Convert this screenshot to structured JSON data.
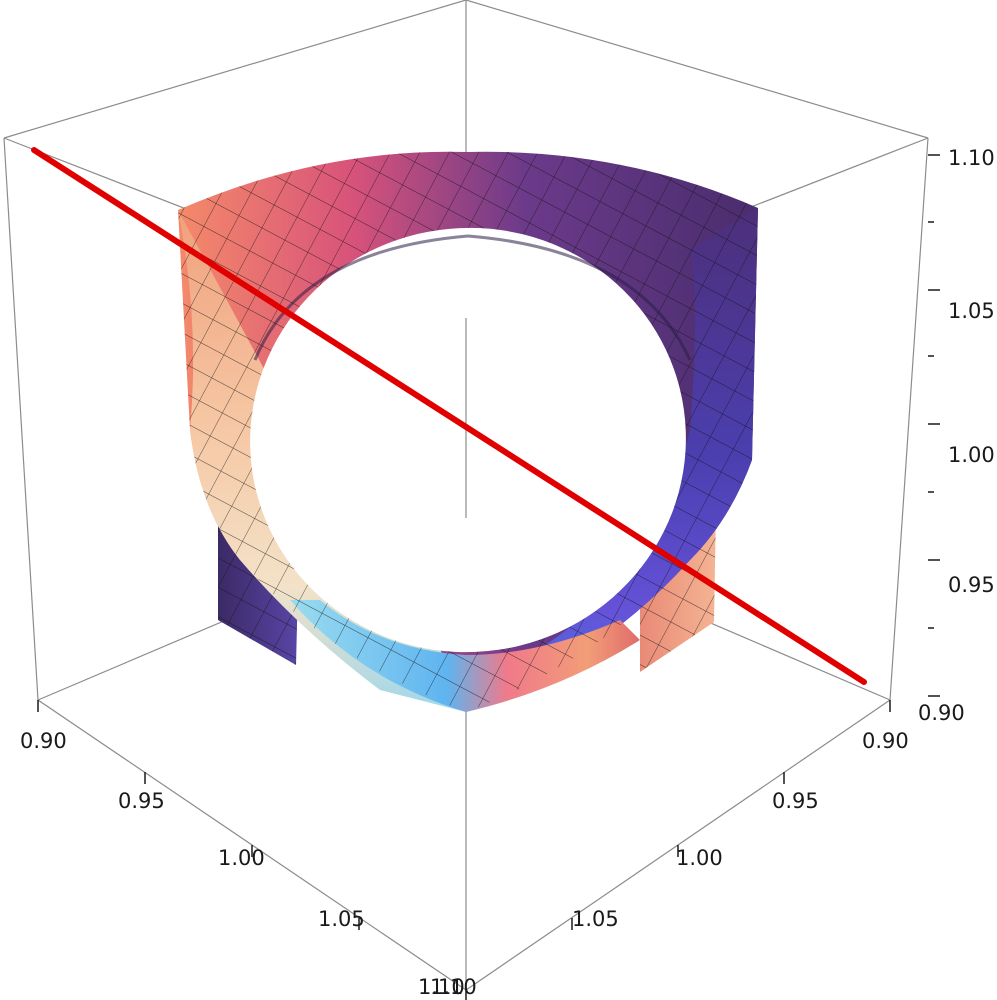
{
  "chart_data": {
    "type": "surface3d",
    "title": "",
    "description_axes": {
      "x": {
        "label": "",
        "range": [
          0.9,
          1.1
        ],
        "ticks": [
          "0.90",
          "0.95",
          "1.00",
          "1.05",
          "1.10"
        ]
      },
      "y": {
        "label": "",
        "range": [
          0.9,
          1.1
        ],
        "ticks": [
          "0.90",
          "0.95",
          "1.00",
          "1.05",
          "1.10"
        ]
      },
      "z": {
        "label": "",
        "range": [
          0.9,
          1.1
        ],
        "ticks": [
          "0.90",
          "0.95",
          "1.00",
          "1.05",
          "1.10"
        ]
      }
    },
    "surface": {
      "shape": "cylindrical band through the unit cube, axis along the viewing diagonal",
      "colormap": [
        "#4a2d6e",
        "#5b3b9a",
        "#c03f75",
        "#f48a6a",
        "#f6d6b3",
        "#8fd8ec",
        "#4fa8f2"
      ],
      "mesh": true
    },
    "line": {
      "color": "#e00000",
      "points": [
        [
          0.9,
          0.9,
          1.1
        ],
        [
          1.1,
          1.1,
          0.9
        ]
      ]
    },
    "box": true
  }
}
